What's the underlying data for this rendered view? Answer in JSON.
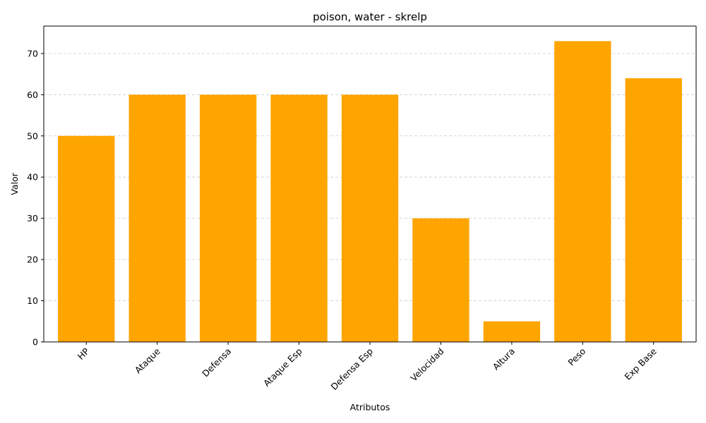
{
  "chart_data": {
    "type": "bar",
    "title": "poison, water - skrelp",
    "xlabel": "Atributos",
    "ylabel": "Valor",
    "categories": [
      "HP",
      "Ataque",
      "Defensa",
      "Ataque Esp",
      "Defensa Esp",
      "Velocidad",
      "Altura",
      "Peso",
      "Exp Base"
    ],
    "values": [
      50,
      60,
      60,
      60,
      60,
      30,
      5,
      73,
      64
    ],
    "ylim": [
      0,
      76.65
    ],
    "yticks": [
      0,
      10,
      20,
      30,
      40,
      50,
      60,
      70
    ],
    "grid": "y-dashed",
    "legend": "none",
    "colors": {
      "bar": "#ffa500",
      "grid": "#cccccc",
      "axis": "#000000"
    }
  }
}
